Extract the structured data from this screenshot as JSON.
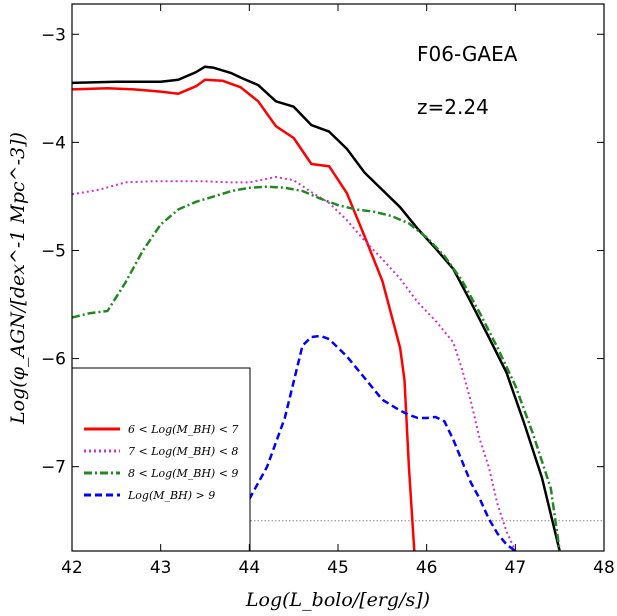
{
  "chart_data": {
    "type": "line",
    "xlabel": "Log(L_bolo/[erg/s])",
    "ylabel": "Log(φ_AGN/[dex^-1 Mpc^-3])",
    "xlim": [
      42,
      48
    ],
    "ylim": [
      -7.78,
      -2.72
    ],
    "xticks": [
      42,
      43,
      44,
      45,
      46,
      47,
      48
    ],
    "yticks": [
      -7,
      -6,
      -5,
      -4,
      -3
    ],
    "xtick_labels": [
      "42",
      "43",
      "44",
      "45",
      "46",
      "47",
      "48"
    ],
    "ytick_labels": [
      "−7",
      "−6",
      "−5",
      "−4",
      "−3"
    ],
    "annotations": [
      "F06-GAEA",
      "z=2.24"
    ],
    "reference_line": {
      "y": -7.5,
      "style": "dotted",
      "color": "#888888"
    },
    "legend": {
      "placement": "lower-left",
      "entries": [
        {
          "label": "6 < Log(M_BH) < 7",
          "color": "#ff0000",
          "style": "solid"
        },
        {
          "label": "7 < Log(M_BH) < 8",
          "color": "#cc33cc",
          "style": "dotted"
        },
        {
          "label": "8 < Log(M_BH) < 9",
          "color": "#228822",
          "style": "dashdot"
        },
        {
          "label": "Log(M_BH) > 9",
          "color": "#0000ff",
          "style": "dashed"
        }
      ]
    },
    "series": [
      {
        "color": "#000000",
        "style": "solid",
        "width": 2.5,
        "x": [
          42.0,
          42.5,
          43.0,
          43.2,
          43.4,
          43.5,
          43.6,
          43.8,
          43.9,
          44.1,
          44.3,
          44.5,
          44.7,
          44.9,
          45.1,
          45.3,
          45.5,
          45.7,
          45.9,
          46.1,
          46.3,
          46.5,
          46.7,
          46.9,
          47.1,
          47.3,
          47.5
        ],
        "y": [
          -3.45,
          -3.44,
          -3.44,
          -3.42,
          -3.35,
          -3.3,
          -3.31,
          -3.36,
          -3.4,
          -3.47,
          -3.62,
          -3.67,
          -3.84,
          -3.9,
          -4.06,
          -4.28,
          -4.44,
          -4.6,
          -4.8,
          -4.98,
          -5.17,
          -5.48,
          -5.8,
          -6.13,
          -6.6,
          -7.1,
          -7.78
        ]
      },
      {
        "color": "#ff0000",
        "style": "solid",
        "width": 2.5,
        "x": [
          42.0,
          42.4,
          42.7,
          43.0,
          43.2,
          43.4,
          43.5,
          43.7,
          43.9,
          44.1,
          44.3,
          44.5,
          44.7,
          44.9,
          45.1,
          45.3,
          45.5,
          45.7,
          45.75,
          45.8,
          45.86
        ],
        "y": [
          -3.51,
          -3.5,
          -3.51,
          -3.53,
          -3.55,
          -3.48,
          -3.42,
          -3.43,
          -3.49,
          -3.62,
          -3.85,
          -3.96,
          -4.2,
          -4.22,
          -4.47,
          -4.87,
          -5.28,
          -5.9,
          -6.2,
          -7.0,
          -7.78
        ]
      },
      {
        "color": "#cc33cc",
        "style": "dotted",
        "width": 2,
        "x": [
          42.0,
          42.3,
          42.6,
          42.9,
          43.2,
          43.5,
          43.8,
          44.0,
          44.3,
          44.5,
          44.7,
          44.9,
          45.1,
          45.3,
          45.5,
          45.7,
          45.9,
          46.1,
          46.3,
          46.4,
          46.5,
          46.6,
          46.7,
          46.8,
          46.9,
          47.0
        ],
        "y": [
          -4.48,
          -4.44,
          -4.37,
          -4.36,
          -4.36,
          -4.36,
          -4.37,
          -4.37,
          -4.32,
          -4.35,
          -4.46,
          -4.56,
          -4.72,
          -4.91,
          -5.08,
          -5.26,
          -5.48,
          -5.65,
          -5.85,
          -6.1,
          -6.4,
          -6.75,
          -7.0,
          -7.35,
          -7.6,
          -7.78
        ]
      },
      {
        "color": "#228822",
        "style": "dashdot",
        "width": 2.5,
        "x": [
          42.0,
          42.2,
          42.4,
          42.6,
          42.8,
          43.0,
          43.2,
          43.4,
          43.6,
          43.8,
          44.0,
          44.2,
          44.4,
          44.6,
          44.8,
          45.0,
          45.2,
          45.4,
          45.6,
          45.8,
          46.0,
          46.2,
          46.4,
          46.6,
          46.8,
          47.0,
          47.2,
          47.4,
          47.5
        ],
        "y": [
          -5.62,
          -5.58,
          -5.56,
          -5.3,
          -5.0,
          -4.76,
          -4.62,
          -4.55,
          -4.5,
          -4.45,
          -4.42,
          -4.41,
          -4.42,
          -4.45,
          -4.52,
          -4.58,
          -4.62,
          -4.64,
          -4.68,
          -4.75,
          -4.88,
          -5.05,
          -5.28,
          -5.58,
          -5.9,
          -6.25,
          -6.7,
          -7.2,
          -7.78
        ]
      },
      {
        "color": "#0000ff",
        "style": "dashed",
        "width": 2.5,
        "x": [
          44.0,
          44.2,
          44.4,
          44.6,
          44.7,
          44.8,
          44.9,
          45.1,
          45.3,
          45.5,
          45.7,
          45.8,
          45.9,
          46.0,
          46.1,
          46.2,
          46.3,
          46.4,
          46.5,
          46.6,
          46.7,
          46.8,
          46.9,
          47.0
        ],
        "y": [
          -7.3,
          -7.0,
          -6.55,
          -5.88,
          -5.8,
          -5.79,
          -5.82,
          -5.98,
          -6.18,
          -6.38,
          -6.48,
          -6.52,
          -6.55,
          -6.55,
          -6.54,
          -6.58,
          -6.75,
          -6.95,
          -7.15,
          -7.3,
          -7.48,
          -7.62,
          -7.72,
          -7.78
        ]
      }
    ]
  }
}
